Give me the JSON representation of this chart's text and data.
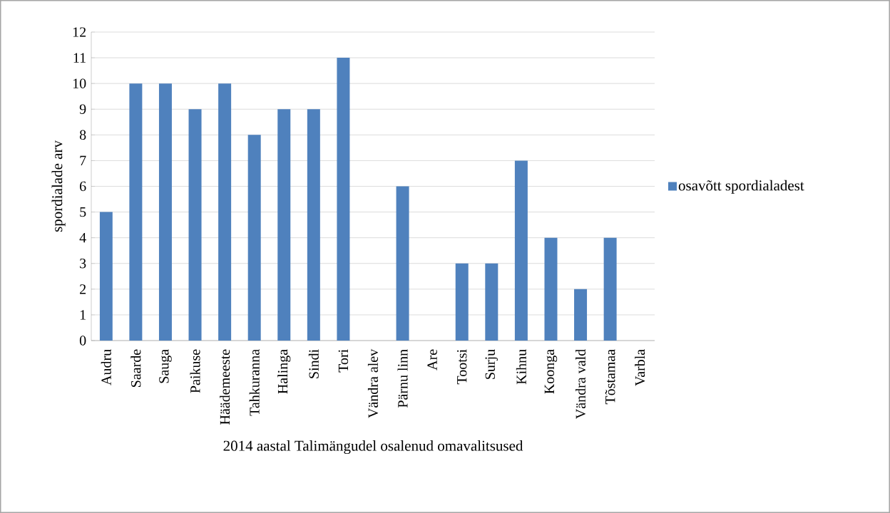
{
  "chart_data": {
    "type": "bar",
    "xlabel": "2014  aastal Talimängudel osalenud omavalitsused",
    "ylabel": "spordialade arv",
    "categories": [
      "Audru",
      "Saarde",
      "Sauga",
      "Paikuse",
      "Häädemeeste",
      "Tahkuranna",
      "Halinga",
      "Sindi",
      "Tori",
      "Vändra alev",
      "Pärnu linn",
      "Are",
      "Tootsi",
      "Surju",
      "Kihnu",
      "Koonga",
      "Vändra vald",
      "Tõstamaa",
      "Varbla"
    ],
    "series": [
      {
        "name": "osavõtt spordialadest",
        "color": "#4f81bd",
        "values": [
          5,
          10,
          10,
          9,
          10,
          8,
          9,
          9,
          11,
          0,
          6,
          0,
          3,
          3,
          7,
          4,
          2,
          4,
          0
        ]
      }
    ],
    "ylim": [
      0,
      12
    ],
    "yticks": [
      0,
      1,
      2,
      3,
      4,
      5,
      6,
      7,
      8,
      9,
      10,
      11,
      12
    ],
    "grid": "y",
    "legend": "right"
  }
}
